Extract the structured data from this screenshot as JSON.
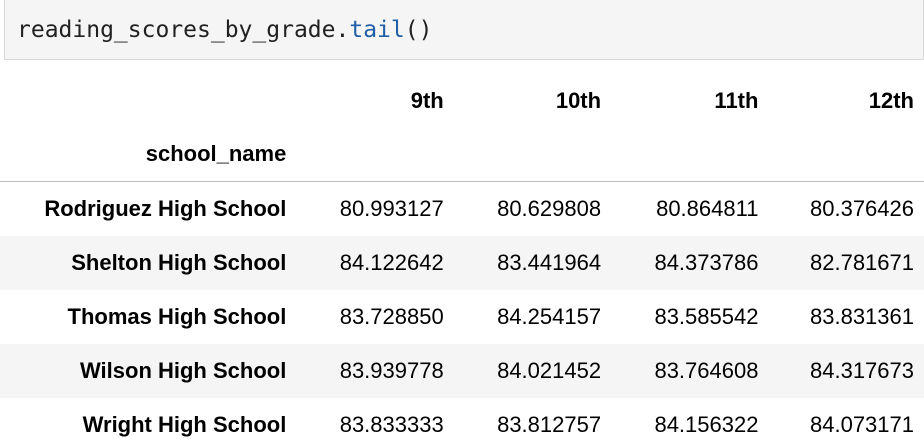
{
  "code_cell": {
    "prefix": "reading_scores_by_grade.",
    "method": "tail",
    "suffix": "()"
  },
  "table": {
    "columns": [
      "9th",
      "10th",
      "11th",
      "12th"
    ],
    "index_name": "school_name",
    "rows": [
      {
        "label": "Rodriguez High School",
        "values": [
          "80.993127",
          "80.629808",
          "80.864811",
          "80.376426"
        ]
      },
      {
        "label": "Shelton High School",
        "values": [
          "84.122642",
          "83.441964",
          "84.373786",
          "82.781671"
        ]
      },
      {
        "label": "Thomas High School",
        "values": [
          "83.728850",
          "84.254157",
          "83.585542",
          "83.831361"
        ]
      },
      {
        "label": "Wilson High School",
        "values": [
          "83.939778",
          "84.021452",
          "83.764608",
          "84.317673"
        ]
      },
      {
        "label": "Wright High School",
        "values": [
          "83.833333",
          "83.812757",
          "84.156322",
          "84.073171"
        ]
      }
    ]
  }
}
